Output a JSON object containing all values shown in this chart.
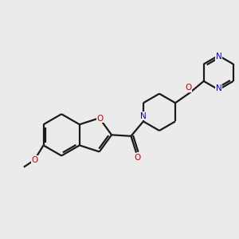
{
  "bg_color": "#ebebeb",
  "bond_color": "#1a1a1a",
  "N_color": "#0000cc",
  "O_color": "#cc0000",
  "bond_width": 1.6,
  "figsize": [
    3.0,
    3.0
  ],
  "dpi": 100,
  "xlim": [
    0,
    10
  ],
  "ylim": [
    0,
    10
  ]
}
